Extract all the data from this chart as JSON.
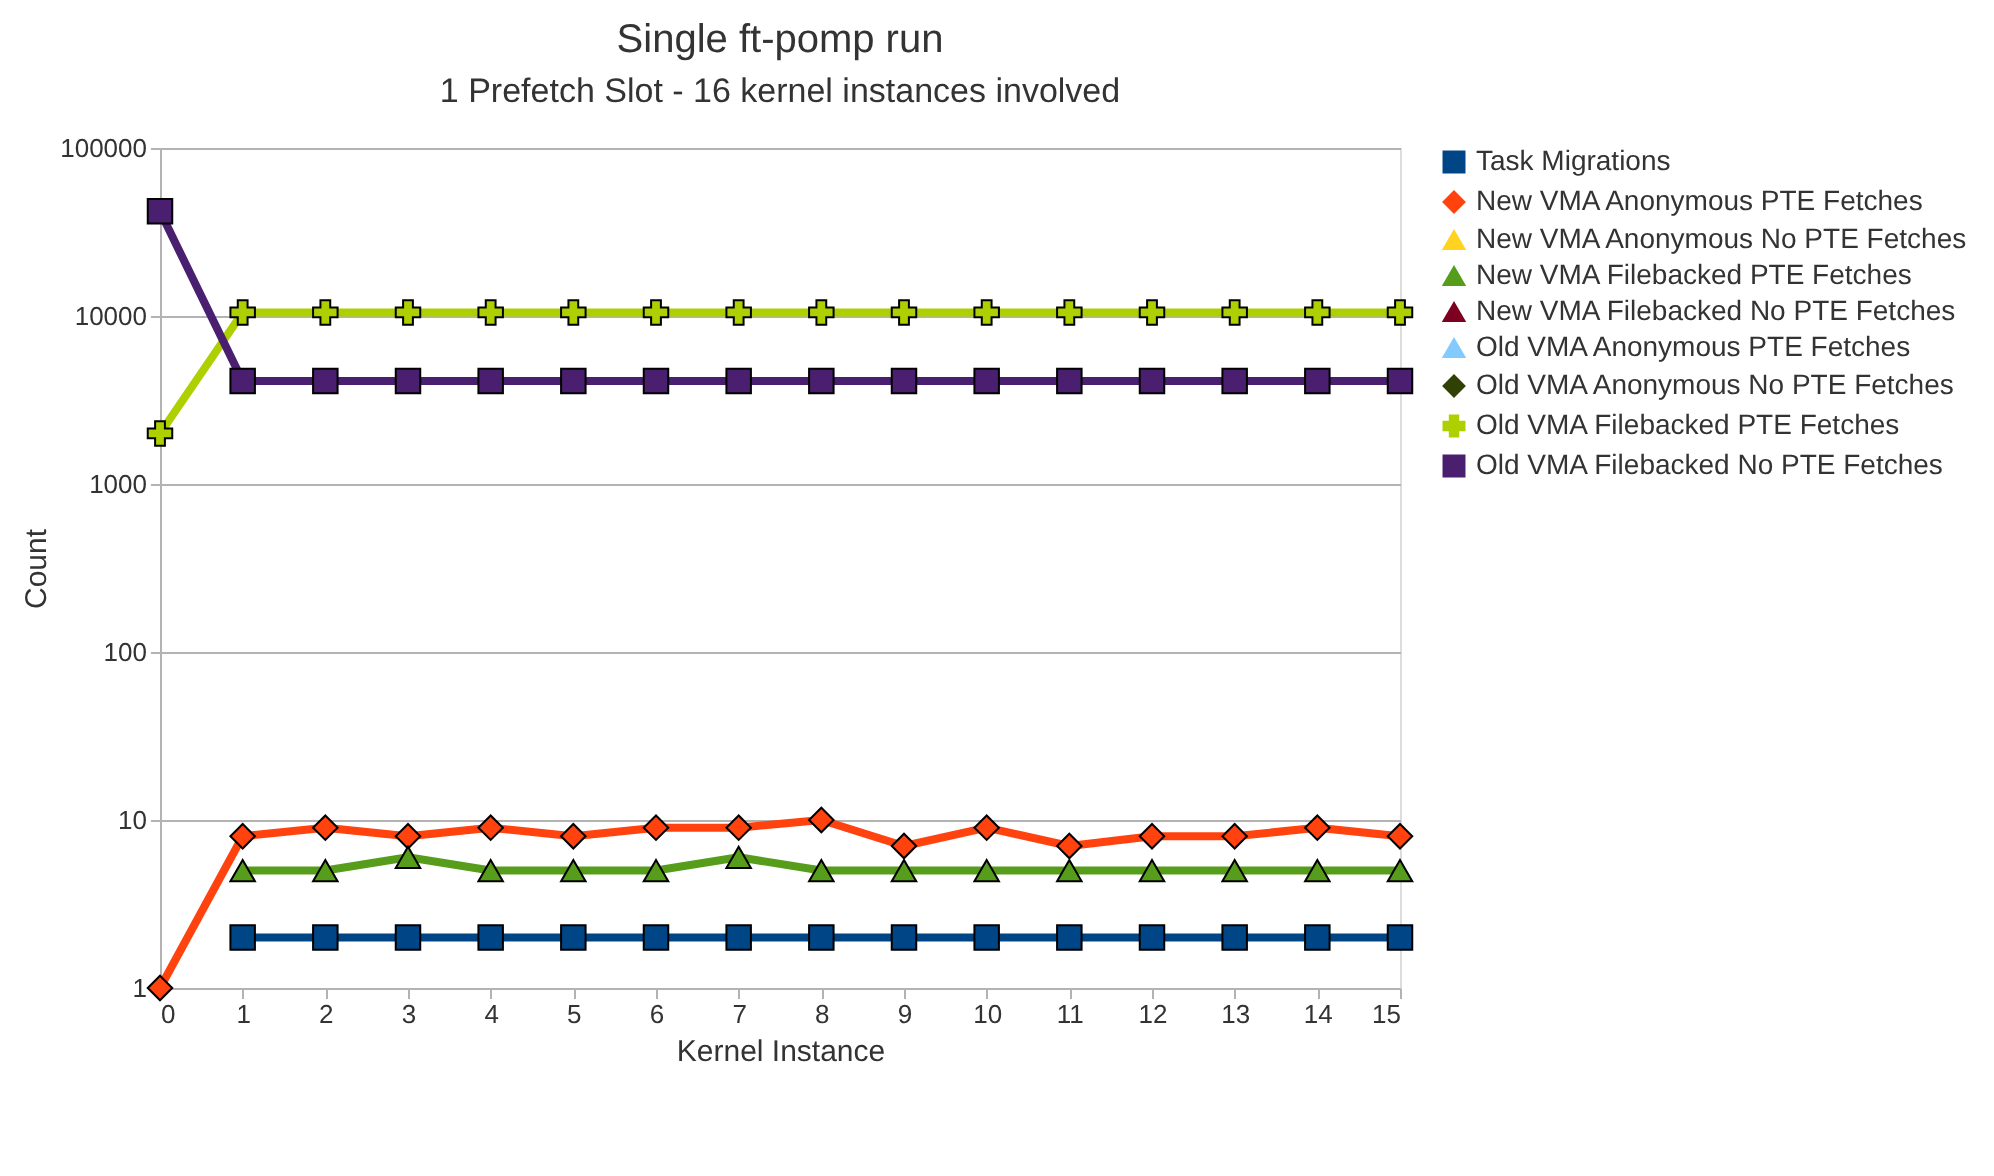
{
  "chart_data": {
    "type": "line",
    "title": "Single ft-pomp run",
    "subtitle": "1 Prefetch Slot - 16 kernel instances involved",
    "xlabel": "Kernel Instance",
    "ylabel": "Count",
    "x": [
      0,
      1,
      2,
      3,
      4,
      5,
      6,
      7,
      8,
      9,
      10,
      11,
      12,
      13,
      14,
      15
    ],
    "series": [
      {
        "name": "Task Migrations",
        "color": "#004586",
        "marker": "square",
        "values": [
          null,
          2,
          2,
          2,
          2,
          2,
          2,
          2,
          2,
          2,
          2,
          2,
          2,
          2,
          2,
          2
        ]
      },
      {
        "name": "New VMA Anonymous PTE Fetches",
        "color": "#ff420e",
        "marker": "diamond",
        "values": [
          1,
          8,
          9,
          8,
          9,
          8,
          9,
          9,
          10,
          7,
          9,
          7,
          8,
          8,
          9,
          8
        ]
      },
      {
        "name": "New VMA Anonymous No PTE Fetches",
        "color": "#ffd320",
        "marker": "triangle",
        "values": [
          null,
          null,
          null,
          null,
          null,
          null,
          null,
          null,
          null,
          null,
          null,
          null,
          null,
          null,
          null,
          null
        ]
      },
      {
        "name": "New VMA Filebacked PTE Fetches",
        "color": "#579d1c",
        "marker": "triangle",
        "values": [
          null,
          5,
          5,
          6,
          5,
          5,
          5,
          6,
          5,
          5,
          5,
          5,
          5,
          5,
          5,
          5
        ]
      },
      {
        "name": "New VMA Filebacked No PTE Fetches",
        "color": "#7e0021",
        "marker": "triangle",
        "values": [
          null,
          null,
          null,
          null,
          null,
          null,
          null,
          null,
          null,
          null,
          null,
          null,
          null,
          null,
          null,
          null
        ]
      },
      {
        "name": "Old VMA Anonymous PTE Fetches",
        "color": "#83caff",
        "marker": "triangle",
        "values": [
          null,
          null,
          null,
          null,
          null,
          null,
          null,
          null,
          null,
          null,
          null,
          null,
          null,
          null,
          null,
          null
        ]
      },
      {
        "name": "Old VMA Anonymous No PTE Fetches",
        "color": "#314004",
        "marker": "diamond",
        "values": [
          null,
          null,
          null,
          null,
          null,
          null,
          null,
          null,
          null,
          null,
          null,
          null,
          null,
          null,
          null,
          null
        ]
      },
      {
        "name": "Old VMA Filebacked PTE Fetches",
        "color": "#aecf00",
        "marker": "cross",
        "values": [
          2000,
          10500,
          10500,
          10500,
          10500,
          10500,
          10500,
          10500,
          10500,
          10500,
          10500,
          10500,
          10500,
          10500,
          10500,
          10500
        ]
      },
      {
        "name": "Old VMA Filebacked No PTE Fetches",
        "color": "#4b1f6f",
        "marker": "square",
        "values": [
          42000,
          4100,
          4100,
          4100,
          4100,
          4100,
          4100,
          4100,
          4100,
          4100,
          4100,
          4100,
          4100,
          4100,
          4100,
          4100
        ]
      }
    ],
    "xlim": [
      0,
      15
    ],
    "xticks": [
      0,
      1,
      2,
      3,
      4,
      5,
      6,
      7,
      8,
      9,
      10,
      11,
      12,
      13,
      14,
      15
    ],
    "ylim": [
      1,
      100000
    ],
    "yticks": [
      1,
      10,
      100,
      1000,
      10000,
      100000
    ],
    "log": true,
    "grid": "y",
    "legend": "right",
    "line_style": "solid"
  }
}
